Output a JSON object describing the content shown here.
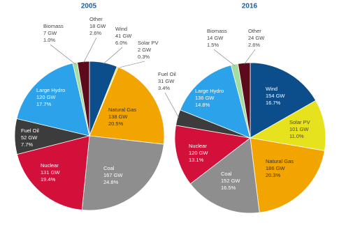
{
  "chart_data": [
    {
      "type": "pie",
      "title": "2005",
      "categories": [
        "Wind",
        "Solar PV",
        "Natural Gas",
        "Coal",
        "Nuclear",
        "Fuel Oil",
        "Large Hydro",
        "Biomass",
        "Other"
      ],
      "capacities": [
        "41 GW",
        "2 GW",
        "138 GW",
        "167 GW",
        "131 GW",
        "52 GW",
        "120 GW",
        "7 GW",
        "18 GW"
      ],
      "values": [
        6.0,
        0.3,
        20.5,
        24.8,
        19.4,
        7.7,
        17.7,
        1.0,
        2.6
      ],
      "value_labels": [
        "6.0%",
        "0.3%",
        "20.5%",
        "24.8%",
        "19.4%",
        "7.7%",
        "17.7%",
        "1.0%",
        "2.6%"
      ],
      "colors": [
        "#0c4e8c",
        "#e6e21e",
        "#f2a400",
        "#8e8e8e",
        "#d2103a",
        "#3c3c3c",
        "#2ba2ea",
        "#a6dca0",
        "#5c0b1c"
      ]
    },
    {
      "type": "pie",
      "title": "2016",
      "categories": [
        "Wind",
        "Solar PV",
        "Natural Gas",
        "Coal",
        "Nuclear",
        "Fuel Oil",
        "Large Hydro",
        "Biomass",
        "Other"
      ],
      "capacities": [
        "154 GW",
        "101 GW",
        "186 GW",
        "152 GW",
        "120 GW",
        "31 GW",
        "136 GW",
        "14 GW",
        "24 GW"
      ],
      "values": [
        16.7,
        11.0,
        20.3,
        16.5,
        13.1,
        3.4,
        14.8,
        1.5,
        2.6
      ],
      "value_labels": [
        "16.7%",
        "11.0%",
        "20.3%",
        "16.5%",
        "13.1%",
        "3.4%",
        "14.8%",
        "1.5%",
        "2.6%"
      ],
      "colors": [
        "#0c4e8c",
        "#e6e21e",
        "#f2a400",
        "#8e8e8e",
        "#d2103a",
        "#3c3c3c",
        "#2ba2ea",
        "#a6dca0",
        "#5c0b1c"
      ]
    }
  ]
}
